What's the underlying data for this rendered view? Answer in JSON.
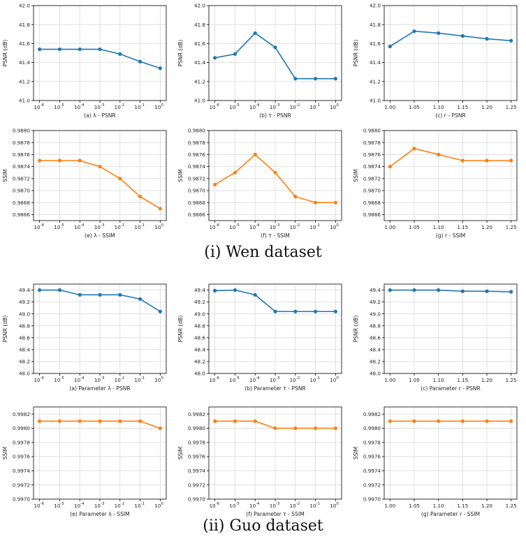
{
  "figure": {
    "section_captions": [
      "(i) Wen dataset",
      "(ii) Guo dataset"
    ]
  },
  "colors": {
    "psnr": "#1f77b4",
    "ssim": "#ff7f0e",
    "grid": "#d9d9d9",
    "axis": "#000000"
  },
  "chart_data": [
    {
      "type": "line",
      "section": "Wen",
      "title": "(a) λ - PSNR",
      "ylabel": "PSNR (dB)",
      "xlabel": "",
      "x_scale": "log",
      "x": [
        1e-06,
        1e-05,
        0.0001,
        0.001,
        0.01,
        0.1,
        1
      ],
      "xticks": [
        [
          "10",
          "-6"
        ],
        [
          "10",
          "-5"
        ],
        [
          "10",
          "-4"
        ],
        [
          "10",
          "-3"
        ],
        [
          "10",
          "-2"
        ],
        [
          "10",
          "-1"
        ],
        [
          "10",
          "0"
        ]
      ],
      "y": [
        41.54,
        41.54,
        41.54,
        41.54,
        41.49,
        41.41,
        41.34
      ],
      "ylim": [
        41.0,
        42.0
      ],
      "yticks": [
        "41.0",
        "41.2",
        "41.4",
        "41.6",
        "41.8",
        "42.0"
      ],
      "color": "psnr",
      "grid": true
    },
    {
      "type": "line",
      "section": "Wen",
      "title": "(b) τ - PSNR",
      "ylabel": "PSNR (dB)",
      "xlabel": "",
      "x_scale": "log",
      "x": [
        1e-06,
        1e-05,
        0.0001,
        0.001,
        0.01,
        0.1,
        1
      ],
      "xticks": [
        [
          "10",
          "-6"
        ],
        [
          "10",
          "-5"
        ],
        [
          "10",
          "-4"
        ],
        [
          "10",
          "-3"
        ],
        [
          "10",
          "-2"
        ],
        [
          "10",
          "-1"
        ],
        [
          "10",
          "0"
        ]
      ],
      "y": [
        41.45,
        41.49,
        41.71,
        41.56,
        41.23,
        41.23,
        41.23
      ],
      "ylim": [
        41.0,
        42.0
      ],
      "yticks": [
        "41.0",
        "41.2",
        "41.4",
        "41.6",
        "41.8",
        "42.0"
      ],
      "color": "psnr",
      "grid": true
    },
    {
      "type": "line",
      "section": "Wen",
      "title": "(c) r - PSNR",
      "ylabel": "PSNR (dB)",
      "xlabel": "",
      "x_scale": "linear",
      "x": [
        1.0,
        1.05,
        1.1,
        1.15,
        1.2,
        1.25
      ],
      "xticks": [
        [
          "1.00",
          ""
        ],
        [
          "1.05",
          ""
        ],
        [
          "1.10",
          ""
        ],
        [
          "1.15",
          ""
        ],
        [
          "1.20",
          ""
        ],
        [
          "1.25",
          ""
        ]
      ],
      "y": [
        41.57,
        41.73,
        41.71,
        41.68,
        41.65,
        41.63
      ],
      "ylim": [
        41.0,
        42.0
      ],
      "yticks": [
        "41.0",
        "41.2",
        "41.4",
        "41.6",
        "41.8",
        "42.0"
      ],
      "color": "psnr",
      "grid": true
    },
    {
      "type": "line",
      "section": "Wen",
      "title": "(e) λ - SSIM",
      "ylabel": "SSIM",
      "xlabel": "",
      "x_scale": "log",
      "x": [
        1e-06,
        1e-05,
        0.0001,
        0.001,
        0.01,
        0.1,
        1
      ],
      "xticks": [
        [
          "10",
          "-6"
        ],
        [
          "10",
          "-5"
        ],
        [
          "10",
          "-4"
        ],
        [
          "10",
          "-3"
        ],
        [
          "10",
          "-2"
        ],
        [
          "10",
          "-1"
        ],
        [
          "10",
          "0"
        ]
      ],
      "y": [
        0.9875,
        0.9875,
        0.9875,
        0.9874,
        0.9872,
        0.9869,
        0.9867
      ],
      "ylim": [
        0.9865,
        0.988
      ],
      "yticks": [
        "0.9866",
        "0.9868",
        "0.9870",
        "0.9872",
        "0.9874",
        "0.9876",
        "0.9878",
        "0.9880"
      ],
      "color": "ssim",
      "grid": true
    },
    {
      "type": "line",
      "section": "Wen",
      "title": "(f) τ - SSIM",
      "ylabel": "SSIM",
      "xlabel": "",
      "x_scale": "log",
      "x": [
        1e-06,
        1e-05,
        0.0001,
        0.001,
        0.01,
        0.1,
        1
      ],
      "xticks": [
        [
          "10",
          "-6"
        ],
        [
          "10",
          "-5"
        ],
        [
          "10",
          "-4"
        ],
        [
          "10",
          "-3"
        ],
        [
          "10",
          "-2"
        ],
        [
          "10",
          "-1"
        ],
        [
          "10",
          "0"
        ]
      ],
      "y": [
        0.9871,
        0.9873,
        0.9876,
        0.9873,
        0.9869,
        0.9868,
        0.9868
      ],
      "ylim": [
        0.9865,
        0.988
      ],
      "yticks": [
        "0.9866",
        "0.9868",
        "0.9870",
        "0.9872",
        "0.9874",
        "0.9876",
        "0.9878",
        "0.9880"
      ],
      "color": "ssim",
      "grid": true
    },
    {
      "type": "line",
      "section": "Wen",
      "title": "(g) r - SSIM",
      "ylabel": "SSIM",
      "xlabel": "",
      "x_scale": "linear",
      "x": [
        1.0,
        1.05,
        1.1,
        1.15,
        1.2,
        1.25
      ],
      "xticks": [
        [
          "1.00",
          ""
        ],
        [
          "1.05",
          ""
        ],
        [
          "1.10",
          ""
        ],
        [
          "1.15",
          ""
        ],
        [
          "1.20",
          ""
        ],
        [
          "1.25",
          ""
        ]
      ],
      "y": [
        0.9874,
        0.9877,
        0.9876,
        0.9875,
        0.9875,
        0.9875
      ],
      "ylim": [
        0.9865,
        0.988
      ],
      "yticks": [
        "0.9866",
        "0.9868",
        "0.9870",
        "0.9872",
        "0.9874",
        "0.9876",
        "0.9878",
        "0.9880"
      ],
      "color": "ssim",
      "grid": true
    },
    {
      "type": "line",
      "section": "Guo",
      "title": "(a) Parameter λ - PSNR",
      "ylabel": "PSNR (dB)",
      "xlabel": "",
      "x_scale": "log",
      "x": [
        1e-06,
        1e-05,
        0.0001,
        0.001,
        0.01,
        0.1,
        1
      ],
      "xticks": [
        [
          "10",
          "-6"
        ],
        [
          "10",
          "-5"
        ],
        [
          "10",
          "-4"
        ],
        [
          "10",
          "-3"
        ],
        [
          "10",
          "-2"
        ],
        [
          "10",
          "-1"
        ],
        [
          "10",
          "0"
        ]
      ],
      "y": [
        49.4,
        49.4,
        49.32,
        49.32,
        49.32,
        49.25,
        49.04
      ],
      "ylim": [
        48.0,
        49.5
      ],
      "yticks": [
        "48.0",
        "48.2",
        "48.4",
        "48.6",
        "48.8",
        "49.0",
        "49.2",
        "49.4"
      ],
      "color": "psnr",
      "grid": true
    },
    {
      "type": "line",
      "section": "Guo",
      "title": "(b) Parameter τ - PSNR",
      "ylabel": "PSNR (dB)",
      "xlabel": "",
      "x_scale": "log",
      "x": [
        1e-06,
        1e-05,
        0.0001,
        0.001,
        0.01,
        0.1,
        1
      ],
      "xticks": [
        [
          "10",
          "-6"
        ],
        [
          "10",
          "-5"
        ],
        [
          "10",
          "-4"
        ],
        [
          "10",
          "-3"
        ],
        [
          "10",
          "-2"
        ],
        [
          "10",
          "-1"
        ],
        [
          "10",
          "0"
        ]
      ],
      "y": [
        49.39,
        49.4,
        49.32,
        49.04,
        49.04,
        49.04,
        49.04
      ],
      "ylim": [
        48.0,
        49.5
      ],
      "yticks": [
        "48.0",
        "48.2",
        "48.4",
        "48.6",
        "48.8",
        "49.0",
        "49.2",
        "49.4"
      ],
      "color": "psnr",
      "grid": true
    },
    {
      "type": "line",
      "section": "Guo",
      "title": "(c) Parameter r - PSNR",
      "ylabel": "PSNR (dB)",
      "xlabel": "",
      "x_scale": "linear",
      "x": [
        1.0,
        1.05,
        1.1,
        1.15,
        1.2,
        1.25
      ],
      "xticks": [
        [
          "1.00",
          ""
        ],
        [
          "1.05",
          ""
        ],
        [
          "1.10",
          ""
        ],
        [
          "1.15",
          ""
        ],
        [
          "1.20",
          ""
        ],
        [
          "1.25",
          ""
        ]
      ],
      "y": [
        49.4,
        49.4,
        49.4,
        49.38,
        49.38,
        49.37
      ],
      "ylim": [
        48.0,
        49.5
      ],
      "yticks": [
        "48.0",
        "48.2",
        "48.4",
        "48.6",
        "48.8",
        "49.0",
        "49.2",
        "49.4"
      ],
      "color": "psnr",
      "grid": true
    },
    {
      "type": "line",
      "section": "Guo",
      "title": "(e) Parameter λ - SSIM",
      "ylabel": "SSIM",
      "xlabel": "",
      "x_scale": "log",
      "x": [
        1e-06,
        1e-05,
        0.0001,
        0.001,
        0.01,
        0.1,
        1
      ],
      "xticks": [
        [
          "10",
          "-6"
        ],
        [
          "10",
          "-5"
        ],
        [
          "10",
          "-4"
        ],
        [
          "10",
          "-3"
        ],
        [
          "10",
          "-2"
        ],
        [
          "10",
          "-1"
        ],
        [
          "10",
          "0"
        ]
      ],
      "y": [
        0.9981,
        0.9981,
        0.9981,
        0.9981,
        0.9981,
        0.9981,
        0.998
      ],
      "ylim": [
        0.997,
        0.9983
      ],
      "yticks": [
        "0.9970",
        "0.9972",
        "0.9974",
        "0.9976",
        "0.9978",
        "0.9980",
        "0.9982"
      ],
      "color": "ssim",
      "grid": true
    },
    {
      "type": "line",
      "section": "Guo",
      "title": "(f) Parameter τ - SSIM",
      "ylabel": "SSIM",
      "xlabel": "",
      "x_scale": "log",
      "x": [
        1e-06,
        1e-05,
        0.0001,
        0.001,
        0.01,
        0.1,
        1
      ],
      "xticks": [
        [
          "10",
          "-6"
        ],
        [
          "10",
          "-5"
        ],
        [
          "10",
          "-4"
        ],
        [
          "10",
          "-3"
        ],
        [
          "10",
          "-2"
        ],
        [
          "10",
          "-1"
        ],
        [
          "10",
          "0"
        ]
      ],
      "y": [
        0.9981,
        0.9981,
        0.9981,
        0.998,
        0.998,
        0.998,
        0.998
      ],
      "ylim": [
        0.997,
        0.9983
      ],
      "yticks": [
        "0.9970",
        "0.9972",
        "0.9974",
        "0.9976",
        "0.9978",
        "0.9980",
        "0.9982"
      ],
      "color": "ssim",
      "grid": true
    },
    {
      "type": "line",
      "section": "Guo",
      "title": "(g) Parameter r - SSIM",
      "ylabel": "SSIM",
      "xlabel": "",
      "x_scale": "linear",
      "x": [
        1.0,
        1.05,
        1.1,
        1.15,
        1.2,
        1.25
      ],
      "xticks": [
        [
          "1.00",
          ""
        ],
        [
          "1.05",
          ""
        ],
        [
          "1.10",
          ""
        ],
        [
          "1.15",
          ""
        ],
        [
          "1.20",
          ""
        ],
        [
          "1.25",
          ""
        ]
      ],
      "y": [
        0.9981,
        0.9981,
        0.9981,
        0.9981,
        0.9981,
        0.9981
      ],
      "ylim": [
        0.997,
        0.9983
      ],
      "yticks": [
        "0.9970",
        "0.9972",
        "0.9974",
        "0.9976",
        "0.9978",
        "0.9980",
        "0.9982"
      ],
      "color": "ssim",
      "grid": true
    }
  ]
}
